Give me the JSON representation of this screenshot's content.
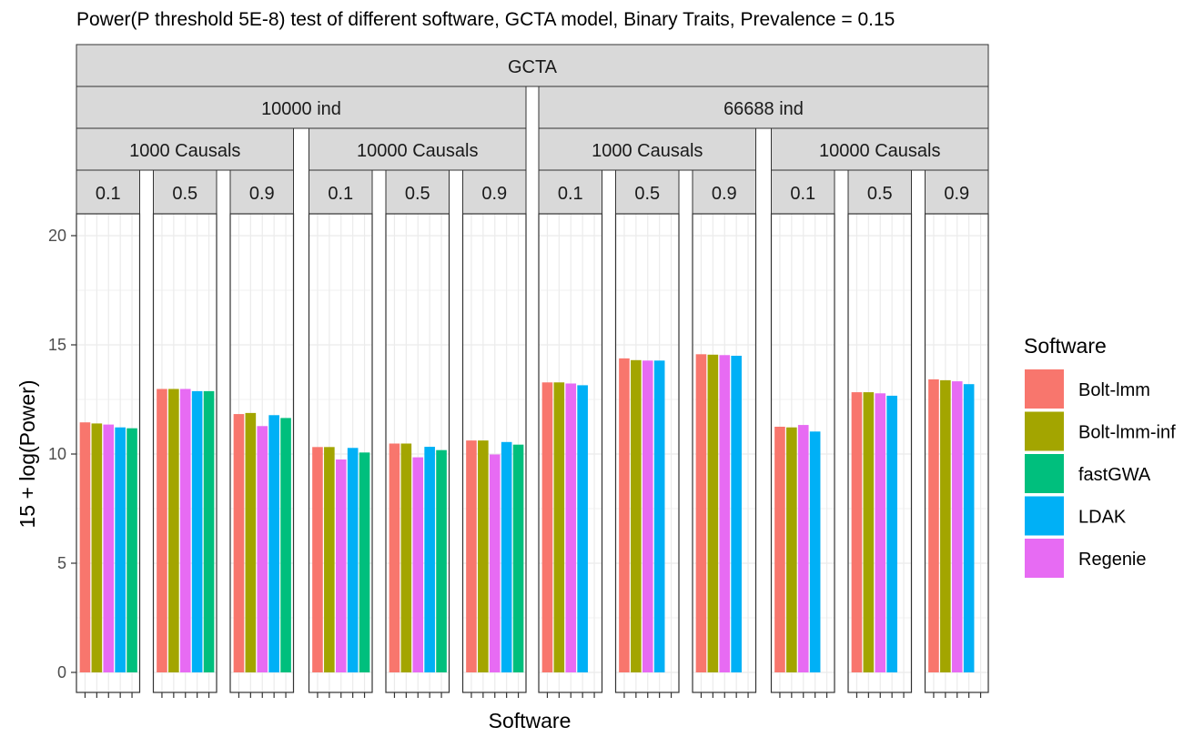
{
  "chart_data": {
    "type": "bar",
    "title": "Power(P threshold 5E-8) test of different software, GCTA model, Binary Traits, Prevalence = 0.15",
    "xlabel": "Software",
    "ylabel": "15 + log(Power)",
    "ylim": [
      0,
      21
    ],
    "yticks": [
      0,
      5,
      10,
      15,
      20
    ],
    "grid": true,
    "legend": {
      "title": "Software",
      "position": "right",
      "entries": [
        "Bolt-lmm",
        "Bolt-lmm-inf",
        "fastGWA",
        "LDAK",
        "Regenie"
      ]
    },
    "colors": {
      "Bolt-lmm": "#F8766D",
      "Bolt-lmm-inf": "#A3A500",
      "fastGWA": "#00BF7D",
      "LDAK": "#00B0F6",
      "Regenie": "#E76BF3"
    },
    "strip_top": "GCTA",
    "x_order": [
      "Bolt-lmm",
      "Bolt-lmm-inf",
      "Regenie",
      "LDAK",
      "fastGWA"
    ],
    "groups": [
      {
        "label": "10000 ind",
        "causals": [
          {
            "label": "1000 Causals",
            "panels": [
              {
                "label": "0.1",
                "values": [
                  11.45,
                  11.4,
                  11.35,
                  11.22,
                  11.18
                ]
              },
              {
                "label": "0.5",
                "values": [
                  12.98,
                  12.98,
                  12.98,
                  12.88,
                  12.88
                ]
              },
              {
                "label": "0.9",
                "values": [
                  11.83,
                  11.88,
                  11.28,
                  11.78,
                  11.65
                ]
              }
            ]
          },
          {
            "label": "10000 Causals",
            "panels": [
              {
                "label": "0.1",
                "values": [
                  10.32,
                  10.32,
                  9.75,
                  10.28,
                  10.07
                ]
              },
              {
                "label": "0.5",
                "values": [
                  10.48,
                  10.48,
                  9.85,
                  10.33,
                  10.18
                ]
              },
              {
                "label": "0.9",
                "values": [
                  10.62,
                  10.62,
                  9.98,
                  10.55,
                  10.43
                ]
              }
            ]
          }
        ]
      },
      {
        "label": "66688 ind",
        "causals": [
          {
            "label": "1000 Causals",
            "panels": [
              {
                "label": "0.1",
                "values": [
                  13.28,
                  13.28,
                  13.23,
                  13.15,
                  null
                ]
              },
              {
                "label": "0.5",
                "values": [
                  14.38,
                  14.3,
                  14.28,
                  14.28,
                  null
                ]
              },
              {
                "label": "0.9",
                "values": [
                  14.57,
                  14.55,
                  14.53,
                  14.5,
                  null
                ]
              }
            ]
          },
          {
            "label": "10000 Causals",
            "panels": [
              {
                "label": "0.1",
                "values": [
                  11.25,
                  11.22,
                  11.33,
                  11.03,
                  null
                ]
              },
              {
                "label": "0.5",
                "values": [
                  12.83,
                  12.83,
                  12.78,
                  12.67,
                  null
                ]
              },
              {
                "label": "0.9",
                "values": [
                  13.42,
                  13.38,
                  13.33,
                  13.2,
                  null
                ]
              }
            ]
          }
        ]
      }
    ]
  }
}
